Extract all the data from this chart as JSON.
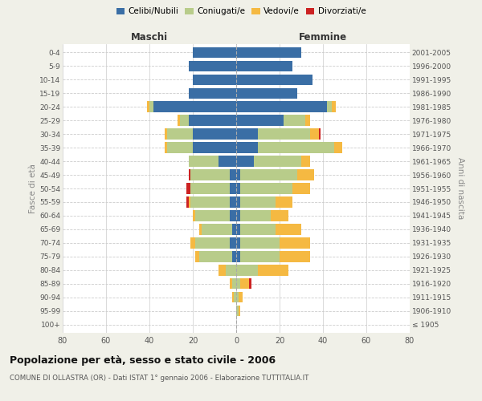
{
  "age_groups": [
    "100+",
    "95-99",
    "90-94",
    "85-89",
    "80-84",
    "75-79",
    "70-74",
    "65-69",
    "60-64",
    "55-59",
    "50-54",
    "45-49",
    "40-44",
    "35-39",
    "30-34",
    "25-29",
    "20-24",
    "15-19",
    "10-14",
    "5-9",
    "0-4"
  ],
  "birth_years": [
    "≤ 1905",
    "1906-1910",
    "1911-1915",
    "1916-1920",
    "1921-1925",
    "1926-1930",
    "1931-1935",
    "1936-1940",
    "1941-1945",
    "1946-1950",
    "1951-1955",
    "1956-1960",
    "1961-1965",
    "1966-1970",
    "1971-1975",
    "1976-1980",
    "1981-1985",
    "1986-1990",
    "1991-1995",
    "1996-2000",
    "2001-2005"
  ],
  "maschi": {
    "celibi": [
      0,
      0,
      0,
      0,
      0,
      2,
      3,
      2,
      3,
      3,
      3,
      3,
      8,
      20,
      20,
      22,
      38,
      22,
      20,
      22,
      20
    ],
    "coniugati": [
      0,
      0,
      1,
      2,
      5,
      15,
      16,
      14,
      16,
      18,
      18,
      18,
      14,
      12,
      12,
      4,
      2,
      0,
      0,
      0,
      0
    ],
    "vedovi": [
      0,
      0,
      1,
      1,
      3,
      2,
      2,
      1,
      1,
      1,
      0,
      0,
      0,
      1,
      1,
      1,
      1,
      0,
      0,
      0,
      0
    ],
    "divorziati": [
      0,
      0,
      0,
      0,
      0,
      0,
      0,
      0,
      0,
      1,
      2,
      1,
      0,
      0,
      0,
      0,
      0,
      0,
      0,
      0,
      0
    ]
  },
  "femmine": {
    "nubili": [
      0,
      0,
      0,
      0,
      0,
      2,
      2,
      2,
      2,
      2,
      2,
      2,
      8,
      10,
      10,
      22,
      42,
      28,
      35,
      26,
      30
    ],
    "coniugate": [
      0,
      1,
      1,
      2,
      10,
      18,
      18,
      16,
      14,
      16,
      24,
      26,
      22,
      35,
      24,
      10,
      2,
      0,
      0,
      0,
      0
    ],
    "vedove": [
      0,
      1,
      2,
      4,
      14,
      14,
      14,
      12,
      8,
      8,
      8,
      8,
      4,
      4,
      4,
      2,
      2,
      0,
      0,
      0,
      0
    ],
    "divorziate": [
      0,
      0,
      0,
      1,
      0,
      0,
      0,
      0,
      0,
      0,
      0,
      0,
      0,
      0,
      1,
      0,
      0,
      0,
      0,
      0,
      0
    ]
  },
  "colors": {
    "celibi": "#3a6ea5",
    "coniugati": "#b8cc8a",
    "vedovi": "#f5b942",
    "divorziati": "#cc2222"
  },
  "xlim": 80,
  "title": "Popolazione per età, sesso e stato civile - 2006",
  "subtitle": "COMUNE DI OLLASTRA (OR) - Dati ISTAT 1° gennaio 2006 - Elaborazione TUTTITALIA.IT",
  "ylabel_left": "Fasce di età",
  "ylabel_right": "Anni di nascita",
  "xlabel_maschi": "Maschi",
  "xlabel_femmine": "Femmine",
  "bg_color": "#f0f0e8",
  "plot_bg": "#ffffff",
  "grid_color": "#cccccc"
}
